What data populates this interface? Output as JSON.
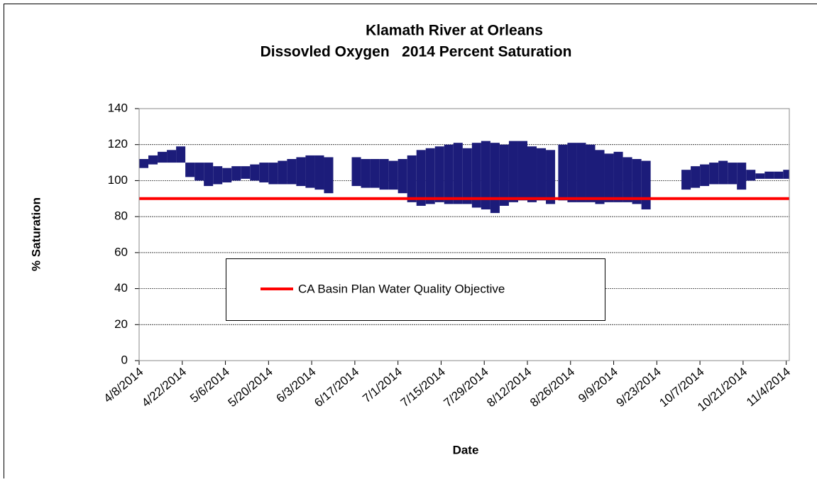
{
  "chart_data": {
    "type": "range",
    "title": "Klamath River at Orleans",
    "subtitle": "Dissovled Oxygen   2014 Percent Saturation",
    "x_label": "Date",
    "y_label": "% Saturation",
    "xlim": [
      "2014-04-08",
      "2014-11-05"
    ],
    "xticks": [
      {
        "value": "2014-04-08",
        "label": "4/8/2014"
      },
      {
        "value": "2014-04-22",
        "label": "4/22/2014"
      },
      {
        "value": "2014-05-06",
        "label": "5/6/2014"
      },
      {
        "value": "2014-05-20",
        "label": "5/20/2014"
      },
      {
        "value": "2014-06-03",
        "label": "6/3/2014"
      },
      {
        "value": "2014-06-17",
        "label": "6/17/2014"
      },
      {
        "value": "2014-07-01",
        "label": "7/1/2014"
      },
      {
        "value": "2014-07-15",
        "label": "7/15/2014"
      },
      {
        "value": "2014-07-29",
        "label": "7/29/2014"
      },
      {
        "value": "2014-08-12",
        "label": "8/12/2014"
      },
      {
        "value": "2014-08-26",
        "label": "8/26/2014"
      },
      {
        "value": "2014-09-09",
        "label": "9/9/2014"
      },
      {
        "value": "2014-09-23",
        "label": "9/23/2014"
      },
      {
        "value": "2014-10-07",
        "label": "10/7/2014"
      },
      {
        "value": "2014-10-21",
        "label": "10/21/2014"
      },
      {
        "value": "2014-11-04",
        "label": "11/4/2014"
      }
    ],
    "ylim": [
      0,
      140
    ],
    "yticks": [
      0,
      20,
      40,
      60,
      80,
      100,
      120,
      140
    ],
    "grid": true,
    "series": [
      {
        "color": "#1c1c7a",
        "x": [
          "2014-04-08",
          "2014-04-11",
          "2014-04-14",
          "2014-04-17",
          "2014-04-20",
          "2014-04-23",
          "2014-04-26",
          "2014-04-29",
          "2014-05-02",
          "2014-05-05",
          "2014-05-08",
          "2014-05-11",
          "2014-05-14",
          "2014-05-17",
          "2014-05-20",
          "2014-05-23",
          "2014-05-26",
          "2014-05-29",
          "2014-06-01",
          "2014-06-04",
          "2014-06-07",
          "2014-06-16",
          "2014-06-19",
          "2014-06-22",
          "2014-06-25",
          "2014-06-28",
          "2014-07-01",
          "2014-07-04",
          "2014-07-07",
          "2014-07-10",
          "2014-07-13",
          "2014-07-16",
          "2014-07-19",
          "2014-07-22",
          "2014-07-25",
          "2014-07-28",
          "2014-07-31",
          "2014-08-03",
          "2014-08-06",
          "2014-08-09",
          "2014-08-12",
          "2014-08-15",
          "2014-08-18",
          "2014-08-22",
          "2014-08-25",
          "2014-08-28",
          "2014-08-31",
          "2014-09-03",
          "2014-09-06",
          "2014-09-09",
          "2014-09-12",
          "2014-09-15",
          "2014-09-18",
          "2014-10-01",
          "2014-10-04",
          "2014-10-07",
          "2014-10-10",
          "2014-10-13",
          "2014-10-16",
          "2014-10-19",
          "2014-10-22",
          "2014-10-25",
          "2014-10-28",
          "2014-10-31",
          "2014-11-03"
        ],
        "values": [
          112,
          114,
          116,
          117,
          119,
          110,
          110,
          110,
          108,
          107,
          108,
          108,
          109,
          110,
          110,
          111,
          112,
          113,
          114,
          114,
          113,
          113,
          112,
          112,
          112,
          111,
          112,
          114,
          117,
          118,
          119,
          120,
          121,
          118,
          121,
          122,
          121,
          120,
          122,
          122,
          119,
          118,
          117,
          120,
          121,
          121,
          120,
          117,
          115,
          116,
          113,
          112,
          111,
          106,
          108,
          109,
          110,
          111,
          110,
          110,
          106,
          104,
          105,
          105,
          106
        ],
        "lows": [
          107,
          109,
          110,
          110,
          110,
          102,
          100,
          97,
          98,
          99,
          100,
          101,
          100,
          99,
          98,
          98,
          98,
          97,
          96,
          95,
          93,
          97,
          96,
          96,
          95,
          95,
          93,
          88,
          86,
          87,
          88,
          87,
          87,
          87,
          85,
          84,
          82,
          86,
          88,
          89,
          88,
          89,
          87,
          89,
          88,
          88,
          88,
          87,
          88,
          88,
          88,
          87,
          84,
          95,
          96,
          97,
          98,
          98,
          98,
          95,
          100,
          101,
          101,
          101,
          101
        ]
      },
      {
        "type": "line",
        "name": "CA Basin Plan Water Quality Objective",
        "color": "#ff0000",
        "x": [
          "2014-04-08",
          "2014-11-05"
        ],
        "values": [
          90,
          90
        ]
      }
    ]
  }
}
